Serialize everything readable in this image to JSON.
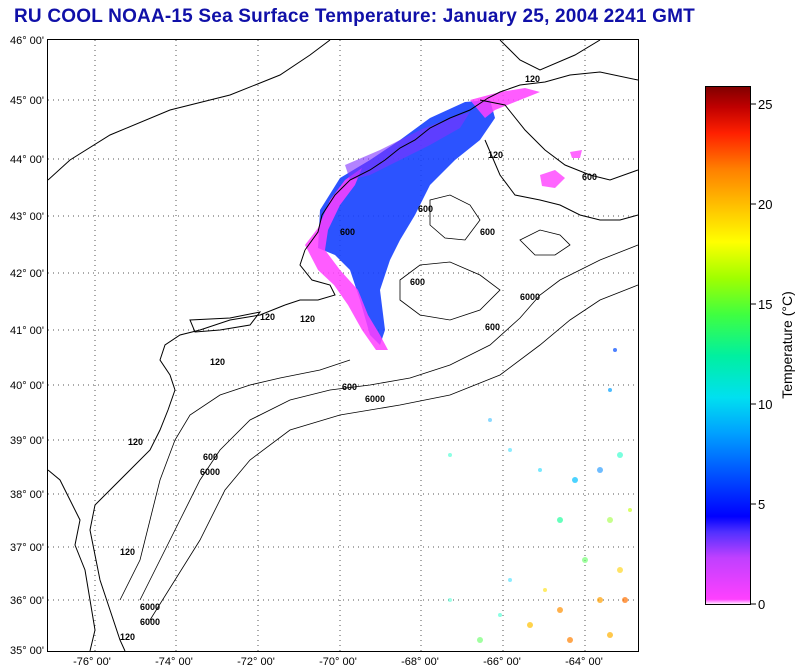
{
  "title": "RU COOL  NOAA-15  Sea Surface Temperature:  January 25, 2004 2241 GMT",
  "map": {
    "lat_labels": [
      "46° 00'",
      "45° 00'",
      "44° 00'",
      "43° 00'",
      "42° 00'",
      "41° 00'",
      "40° 00'",
      "39° 00'",
      "38° 00'",
      "37° 00'",
      "36° 00'",
      "35° 00'"
    ],
    "lon_labels": [
      "-76° 00'",
      "-74° 00'",
      "-72° 00'",
      "-70° 00'",
      "-68° 00'",
      "-66° 00'",
      "-64° 00'"
    ],
    "contour_labels": [
      "120",
      "120",
      "120",
      "120",
      "120",
      "600",
      "600",
      "600",
      "600",
      "6000",
      "600",
      "6000",
      "600",
      "6000",
      "120",
      "600",
      "6000",
      "120",
      "120",
      "600",
      "6000"
    ]
  },
  "colorbar": {
    "title": "Temperature (°C)",
    "ticks": [
      "25",
      "20",
      "15",
      "10",
      "5",
      "0"
    ],
    "min": 0,
    "max": 26
  },
  "colors": {
    "title": "#1010a8",
    "cold": "#ff30ff",
    "mid": "#1040ff",
    "warm": "#ff8000"
  }
}
